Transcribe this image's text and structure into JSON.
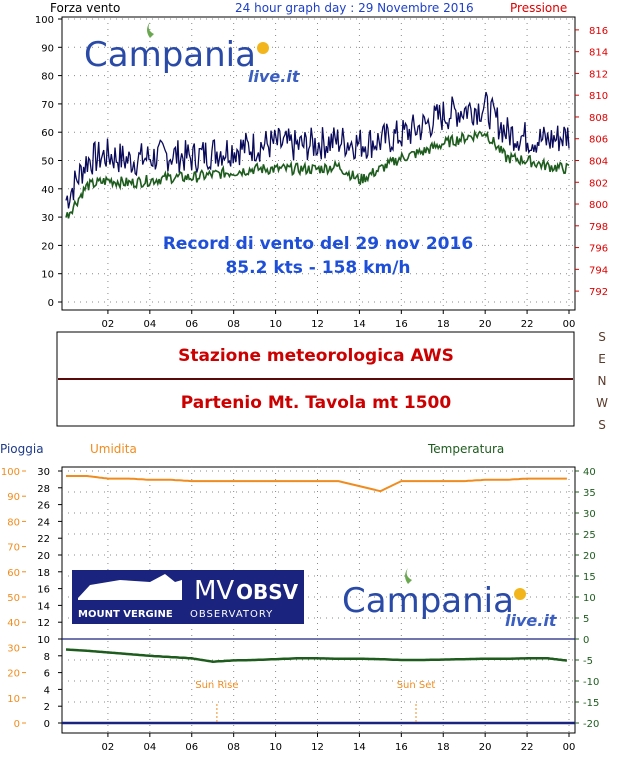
{
  "header": {
    "left_label": "Forza vento",
    "center_label": "24 hour graph day : 29 Novembre 2016",
    "right_label": "Pressione"
  },
  "logo": {
    "text_main": "Campania",
    "text_sub": "live.it"
  },
  "record": {
    "line1": "Record di vento del 29 nov 2016",
    "line2": "85.2 kts - 158 km/h"
  },
  "station": {
    "name": "Stazione meteorologica AWS",
    "location": "Partenio Mt. Tavola mt 1500"
  },
  "compass": [
    "S",
    "E",
    "N",
    "W",
    "S"
  ],
  "lower_labels": {
    "rain": "Pioggia",
    "humidity": "Umidita",
    "temperature": "Temperatura",
    "sunrise": "Sun Rise",
    "sunset": "Sun Set"
  },
  "mvobsv": {
    "mv": "MV",
    "obsv": "OBSV",
    "line2a": "MOUNT VERGINE",
    "line2b": "OBSERVATORY"
  },
  "colors": {
    "wind_max": "#0a0a5a",
    "wind_avg": "#1e5c1e",
    "pressure_axis": "#e00000",
    "humidity": "#f08c1e",
    "temperature": "#1e5c1e",
    "rain_axis": "#f08c1e",
    "rain_line": "#1a237e",
    "record_text": "#1e4fd8",
    "station_text": "#cc0000"
  },
  "chart_data": [
    {
      "type": "line",
      "title": "24 hour graph day : 29 Novembre 2016",
      "ylabel": "Forza vento",
      "y2label": "Pressione",
      "ylim": [
        0,
        100
      ],
      "y2lim": [
        791,
        817
      ],
      "yticks": [
        0,
        10,
        20,
        30,
        40,
        50,
        60,
        70,
        80,
        90,
        100
      ],
      "y2ticks": [
        792,
        794,
        796,
        798,
        800,
        802,
        804,
        806,
        808,
        810,
        812,
        814,
        816
      ],
      "xticks": [
        "02",
        "04",
        "06",
        "08",
        "10",
        "12",
        "14",
        "16",
        "18",
        "20",
        "22",
        "00"
      ],
      "x": [
        "00",
        "01",
        "02",
        "03",
        "04",
        "05",
        "06",
        "07",
        "08",
        "09",
        "10",
        "11",
        "12",
        "13",
        "14",
        "15",
        "16",
        "17",
        "18",
        "19",
        "20",
        "21",
        "22",
        "23",
        "00"
      ],
      "series": [
        {
          "values": [
            36,
            50,
            52,
            50,
            51,
            52,
            51,
            53,
            54,
            55,
            56,
            55,
            56,
            57,
            56,
            57,
            59,
            62,
            66,
            68,
            69,
            60,
            58,
            57,
            59
          ]
        },
        {
          "values": [
            30,
            41,
            43,
            42,
            43,
            44,
            44,
            45,
            46,
            47,
            47,
            47,
            47,
            48,
            43,
            47,
            51,
            53,
            56,
            58,
            60,
            51,
            50,
            48,
            47
          ]
        }
      ]
    },
    {
      "type": "line",
      "ylabel": "Pioggia",
      "y2label": "Temperatura",
      "ylim_rain": [
        0,
        100
      ],
      "ylim_humidity": [
        0,
        30
      ],
      "ylim_temp": [
        -20,
        40
      ],
      "rain_ticks": [
        0,
        10,
        20,
        30,
        40,
        50,
        60,
        70,
        80,
        90,
        100
      ],
      "humidity_ticks": [
        0,
        2,
        4,
        6,
        8,
        10,
        12,
        14,
        16,
        18,
        20,
        22,
        24,
        26,
        28,
        30
      ],
      "temp_ticks": [
        -20,
        -15,
        -10,
        -5,
        0,
        5,
        10,
        15,
        20,
        25,
        30,
        35,
        40
      ],
      "xticks": [
        "02",
        "04",
        "06",
        "08",
        "10",
        "12",
        "14",
        "16",
        "18",
        "20",
        "22",
        "00"
      ],
      "x": [
        "00",
        "01",
        "02",
        "03",
        "04",
        "05",
        "06",
        "07",
        "08",
        "09",
        "10",
        "11",
        "12",
        "13",
        "14",
        "15",
        "16",
        "17",
        "18",
        "19",
        "20",
        "21",
        "22",
        "23",
        "00"
      ],
      "series": [
        {
          "name": "Umidita",
          "values": [
            98,
            98,
            97,
            97,
            96.5,
            96.5,
            96,
            96,
            96,
            96,
            96,
            96,
            96,
            96,
            94,
            92,
            96,
            96,
            96,
            96,
            96.5,
            96.5,
            97,
            97,
            97
          ]
        },
        {
          "name": "Temperatura",
          "values": [
            -2.5,
            -2.8,
            -3.2,
            -3.6,
            -4,
            -4.3,
            -4.6,
            -5.4,
            -5.1,
            -5.0,
            -4.8,
            -4.6,
            -4.6,
            -4.7,
            -4.7,
            -4.8,
            -5.0,
            -5.0,
            -4.9,
            -4.8,
            -4.7,
            -4.7,
            -4.6,
            -4.6,
            -5.2
          ]
        }
      ],
      "rain_values": [
        0,
        0,
        0,
        0,
        0,
        0,
        0,
        0,
        0,
        0,
        0,
        0,
        0,
        0,
        0,
        0,
        0,
        0,
        0,
        0,
        0,
        0,
        0,
        0,
        0
      ],
      "sunrise_hour": 7.2,
      "sunset_hour": 16.7
    }
  ]
}
